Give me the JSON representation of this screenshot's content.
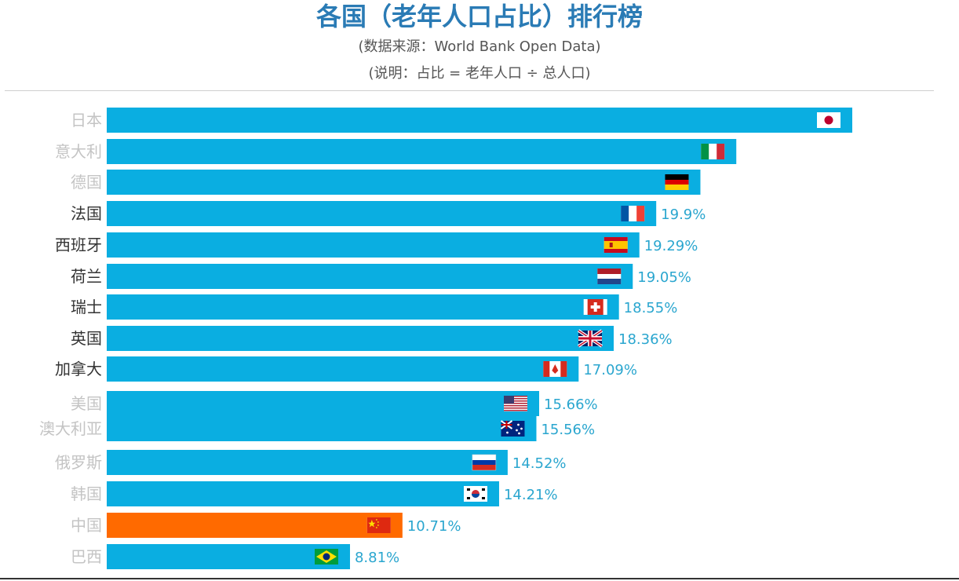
{
  "header": {
    "title": "各国（老年人口占比）排行榜",
    "source": "(数据来源：World Bank Open Data)",
    "note": "(说明：占比 = 老年人口 ÷ 总人口)"
  },
  "colors": {
    "bar": "#0aaee1",
    "highlight": "#ff6a00",
    "value_text": "#2aa6cf",
    "title": "#2a7bb5"
  },
  "chart_data": {
    "type": "bar",
    "orientation": "horizontal",
    "title": "各国（老年人口占比）排行榜",
    "categories": [
      "日本",
      "意大利",
      "德国",
      "法国",
      "西班牙",
      "荷兰",
      "瑞士",
      "英国",
      "加拿大",
      "美国",
      "澳大利亚",
      "俄罗斯",
      "韩国",
      "中国",
      "巴西"
    ],
    "values": [
      27.0,
      22.8,
      21.5,
      19.9,
      19.29,
      19.05,
      18.55,
      18.36,
      17.09,
      15.66,
      15.56,
      14.52,
      14.21,
      10.71,
      8.81
    ],
    "value_labels": [
      "",
      "",
      "",
      "19.9%",
      "19.29%",
      "19.05%",
      "18.55%",
      "18.36%",
      "17.09%",
      "15.66%",
      "15.56%",
      "14.52%",
      "14.21%",
      "10.71%",
      "8.81%"
    ],
    "label_faded": [
      true,
      true,
      true,
      false,
      false,
      false,
      false,
      false,
      false,
      true,
      true,
      true,
      true,
      true,
      true
    ],
    "flags": [
      "japan-flag-icon",
      "italy-flag-icon",
      "germany-flag-icon",
      "france-flag-icon",
      "spain-flag-icon",
      "netherlands-flag-icon",
      "switzerland-flag-icon",
      "uk-flag-icon",
      "canada-flag-icon",
      "usa-flag-icon",
      "australia-flag-icon",
      "russia-flag-icon",
      "south-korea-flag-icon",
      "china-flag-icon",
      "brazil-flag-icon"
    ],
    "highlight_index": 13,
    "xlim": [
      0,
      28
    ],
    "grid": false,
    "legend": "none"
  }
}
